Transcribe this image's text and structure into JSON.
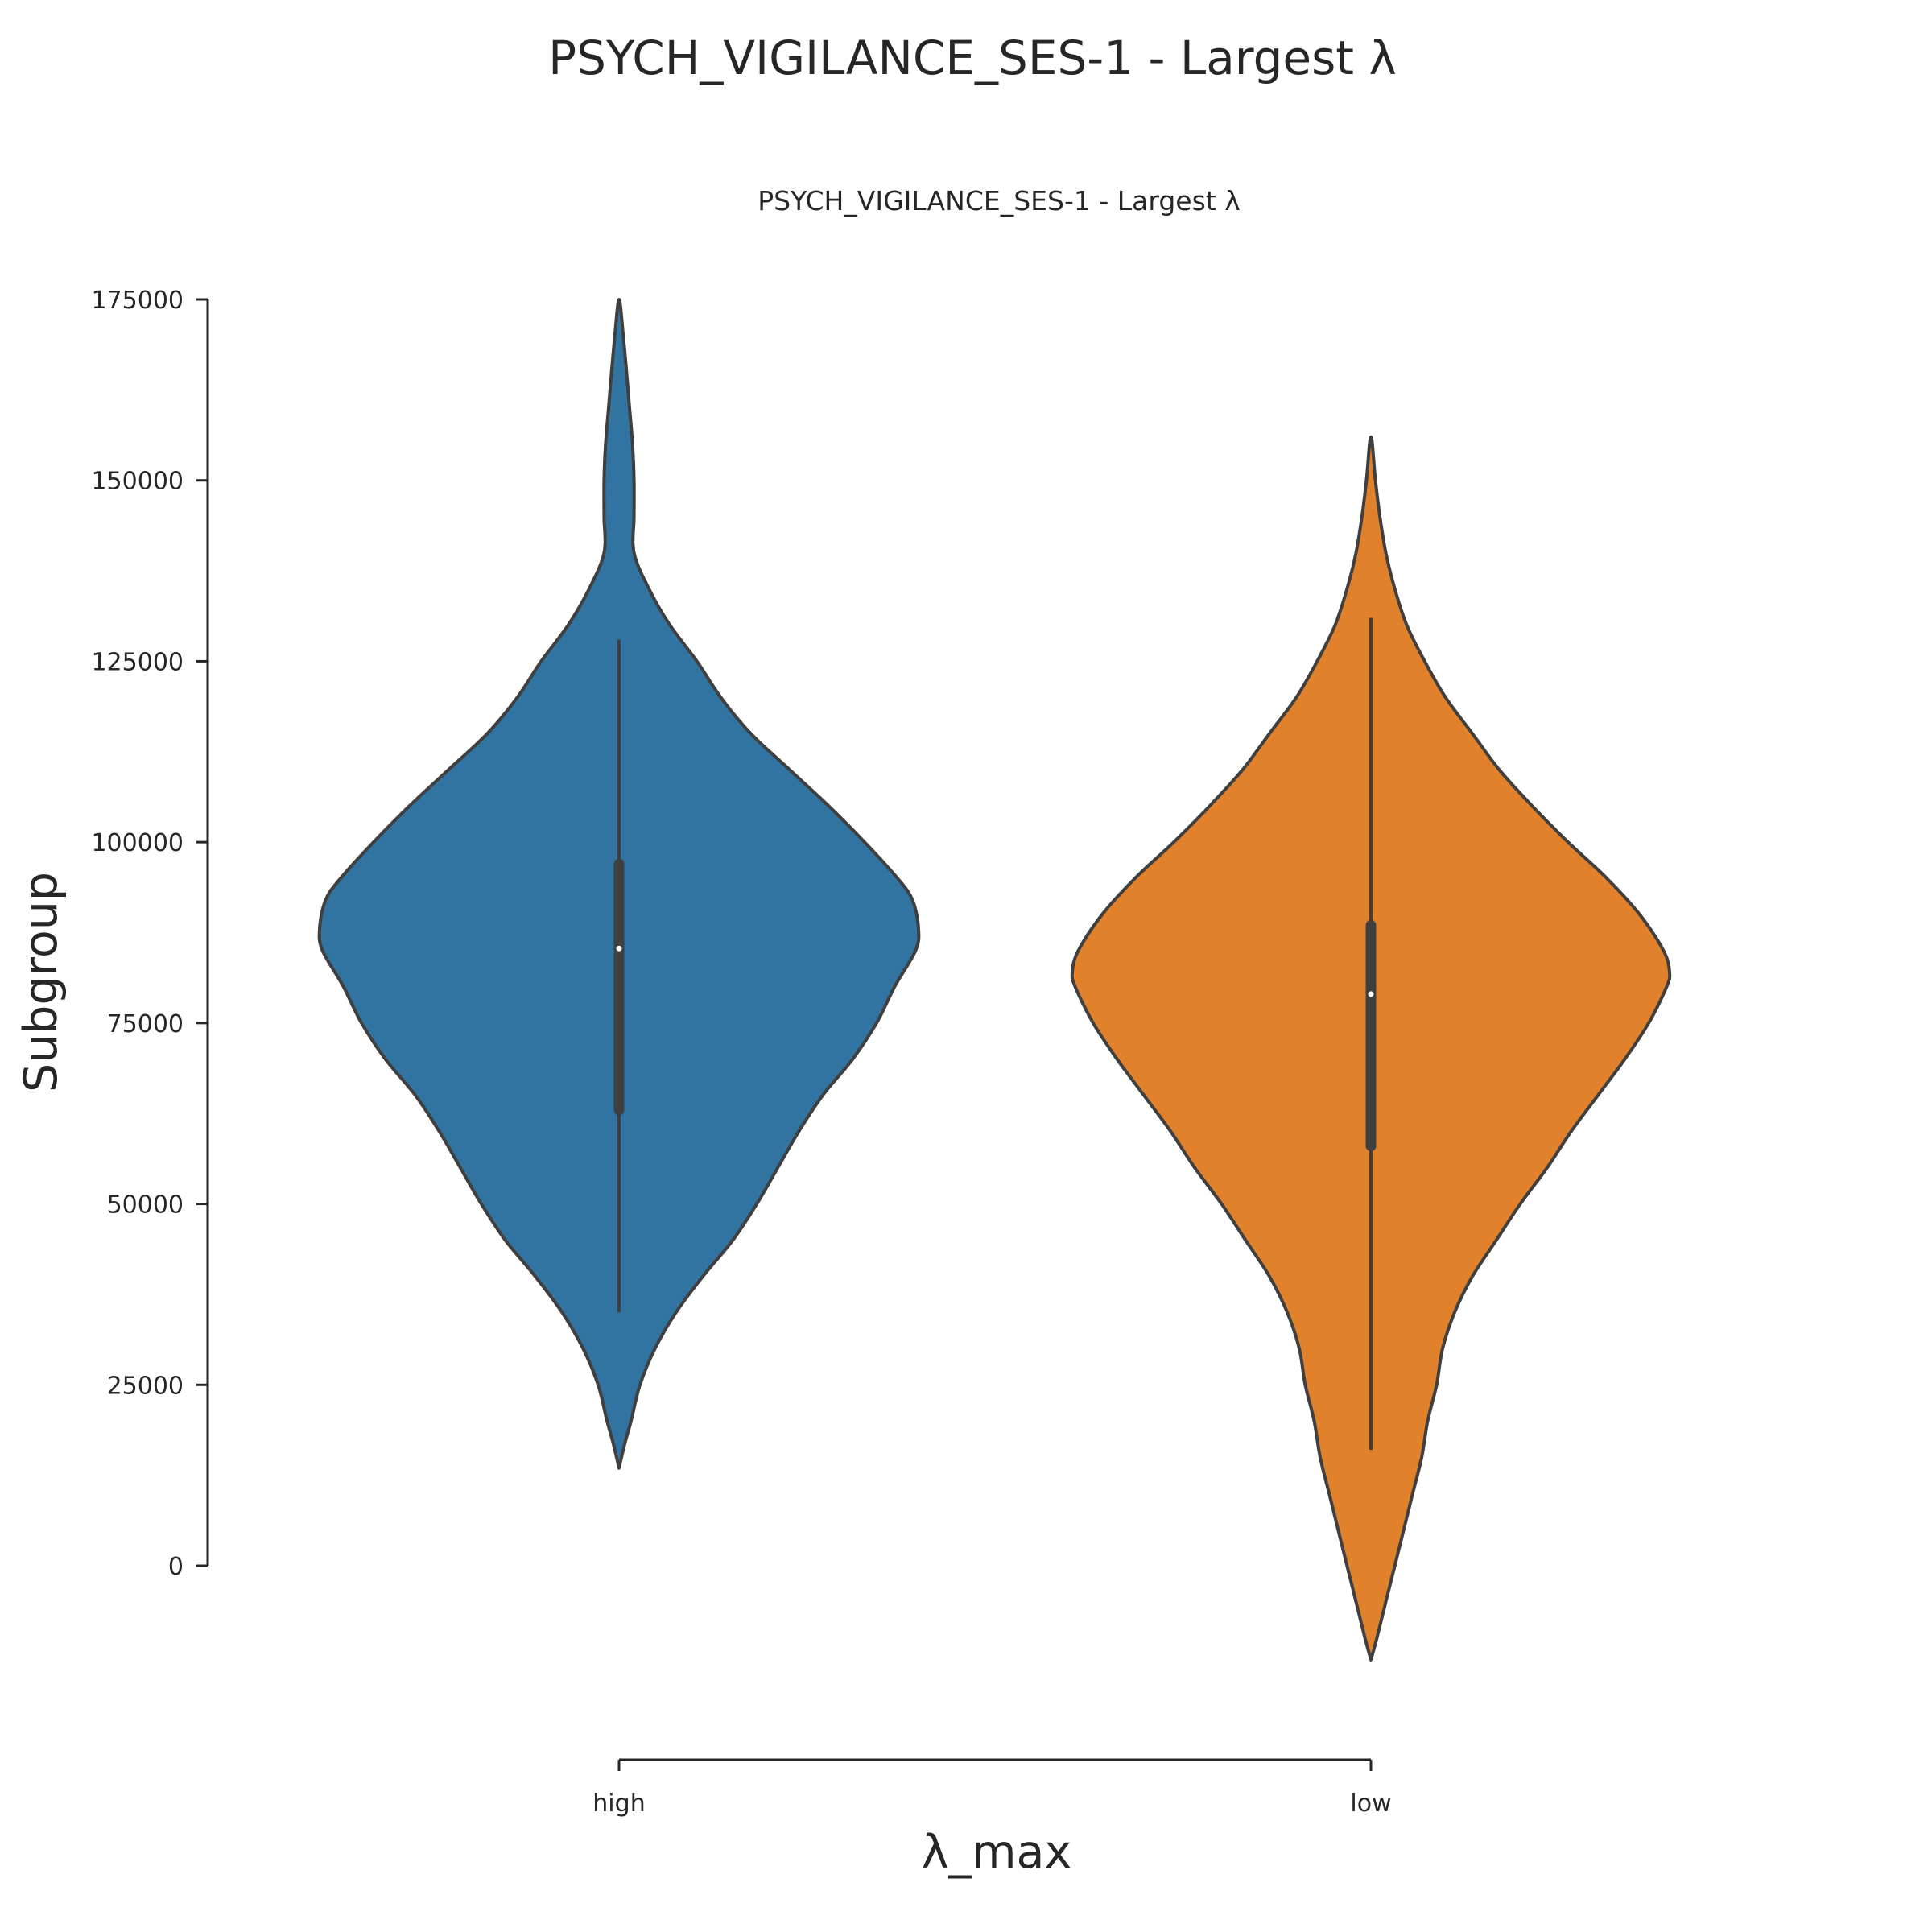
{
  "figure": {
    "suptitle": "PSYCH_VIGILANCE_SES-1 - Largest λ"
  },
  "chart_data": {
    "type": "violin",
    "title": "PSYCH_VIGILANCE_SES-1 - Largest λ",
    "xlabel": "λ_max",
    "ylabel": "Subgroup",
    "categories": [
      "high",
      "low"
    ],
    "ylim": [
      -13000,
      175000
    ],
    "yticks": [
      0,
      25000,
      50000,
      75000,
      100000,
      125000,
      150000,
      175000
    ],
    "yticklabels": [
      "0",
      "25000",
      "50000",
      "75000",
      "100000",
      "125000",
      "150000",
      "175000"
    ],
    "grid": false,
    "legend": "none",
    "series": [
      {
        "category": "high",
        "color": "#3274a1",
        "extent": [
          13500,
          175000
        ],
        "whisker": [
          35000,
          128000
        ],
        "quartiles": [
          63000,
          97000
        ],
        "median": 85300,
        "density": [
          [
            13500,
            0.0
          ],
          [
            17000,
            0.02
          ],
          [
            20000,
            0.04
          ],
          [
            25000,
            0.07
          ],
          [
            30000,
            0.12
          ],
          [
            35000,
            0.19
          ],
          [
            40000,
            0.28
          ],
          [
            45000,
            0.38
          ],
          [
            50000,
            0.46
          ],
          [
            55000,
            0.53
          ],
          [
            60000,
            0.6
          ],
          [
            65000,
            0.68
          ],
          [
            70000,
            0.78
          ],
          [
            75000,
            0.86
          ],
          [
            80000,
            0.92
          ],
          [
            85000,
            0.99
          ],
          [
            88000,
            1.0
          ],
          [
            92000,
            0.98
          ],
          [
            95000,
            0.93
          ],
          [
            100000,
            0.82
          ],
          [
            105000,
            0.7
          ],
          [
            110000,
            0.57
          ],
          [
            115000,
            0.44
          ],
          [
            120000,
            0.34
          ],
          [
            125000,
            0.26
          ],
          [
            130000,
            0.17
          ],
          [
            135000,
            0.1
          ],
          [
            140000,
            0.05
          ],
          [
            145000,
            0.05
          ],
          [
            150000,
            0.05
          ],
          [
            155000,
            0.045
          ],
          [
            160000,
            0.035
          ],
          [
            165000,
            0.025
          ],
          [
            170000,
            0.014
          ],
          [
            175000,
            0.0
          ]
        ]
      },
      {
        "category": "low",
        "color": "#e1812c",
        "extent": [
          -13000,
          156000
        ],
        "whisker": [
          16000,
          131000
        ],
        "quartiles": [
          58000,
          88500
        ],
        "median": 79000,
        "density": [
          [
            -13000,
            0.0
          ],
          [
            -10000,
            0.02
          ],
          [
            -5000,
            0.05
          ],
          [
            0,
            0.08
          ],
          [
            5000,
            0.11
          ],
          [
            10000,
            0.14
          ],
          [
            15000,
            0.17
          ],
          [
            20000,
            0.19
          ],
          [
            25000,
            0.22
          ],
          [
            30000,
            0.24
          ],
          [
            35000,
            0.28
          ],
          [
            40000,
            0.34
          ],
          [
            45000,
            0.42
          ],
          [
            50000,
            0.5
          ],
          [
            55000,
            0.59
          ],
          [
            60000,
            0.67
          ],
          [
            65000,
            0.76
          ],
          [
            70000,
            0.85
          ],
          [
            75000,
            0.93
          ],
          [
            80000,
            0.99
          ],
          [
            82000,
            1.0
          ],
          [
            85000,
            0.98
          ],
          [
            90000,
            0.9
          ],
          [
            95000,
            0.79
          ],
          [
            100000,
            0.66
          ],
          [
            105000,
            0.54
          ],
          [
            110000,
            0.43
          ],
          [
            115000,
            0.34
          ],
          [
            120000,
            0.25
          ],
          [
            125000,
            0.18
          ],
          [
            130000,
            0.12
          ],
          [
            135000,
            0.08
          ],
          [
            140000,
            0.05
          ],
          [
            145000,
            0.03
          ],
          [
            150000,
            0.015
          ],
          [
            156000,
            0.0
          ]
        ]
      }
    ]
  }
}
